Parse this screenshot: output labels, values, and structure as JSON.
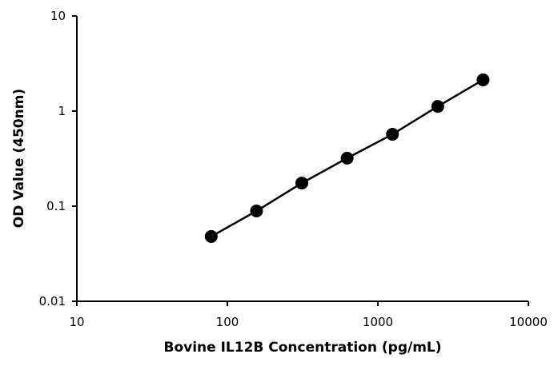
{
  "chart_data": {
    "type": "line",
    "title": "",
    "xlabel": "Bovine IL12B Concentration (pg/mL)",
    "ylabel": "OD Value (450nm)",
    "xscale": "log",
    "yscale": "log",
    "xlim": [
      10,
      10000
    ],
    "ylim": [
      0.01,
      10
    ],
    "xticks": [
      "10",
      "100",
      "1000",
      "10000"
    ],
    "yticks": [
      "0.01",
      "0.1",
      "1",
      "10"
    ],
    "grid": false,
    "legend": "none",
    "series": [
      {
        "x": [
          78.125,
          156.25,
          312.5,
          625,
          1250,
          2500,
          5000
        ],
        "y": [
          0.048,
          0.089,
          0.175,
          0.32,
          0.57,
          1.12,
          2.13
        ],
        "color": "#000000",
        "marker": "circle"
      }
    ]
  }
}
